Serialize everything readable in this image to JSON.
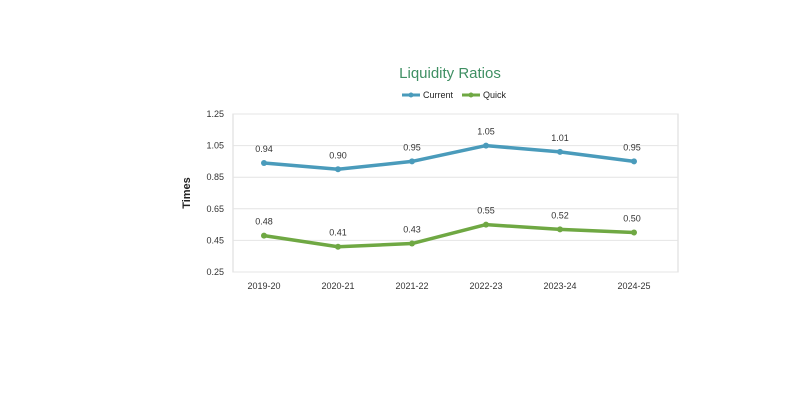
{
  "chart_data": {
    "type": "line",
    "title": "Liquidity Ratios",
    "xlabel": "",
    "ylabel": "Times",
    "categories": [
      "2019-20",
      "2020-21",
      "2021-22",
      "2022-23",
      "2023-24",
      "2024-25"
    ],
    "series": [
      {
        "name": "Current",
        "color": "#4a9bbb",
        "values": [
          0.94,
          0.9,
          0.95,
          1.05,
          1.01,
          0.95
        ],
        "labels": [
          "0.94",
          "0.90",
          "0.95",
          "1.05",
          "1.01",
          "0.95"
        ]
      },
      {
        "name": "Quick",
        "color": "#6fa843",
        "values": [
          0.48,
          0.41,
          0.43,
          0.55,
          0.52,
          0.5
        ],
        "labels": [
          "0.48",
          "0.41",
          "0.43",
          "0.55",
          "0.52",
          "0.50"
        ]
      }
    ],
    "ylim": [
      0.25,
      1.25
    ],
    "yticks": [
      "1.25",
      "1.05",
      "0.85",
      "0.65",
      "0.45",
      "0.25"
    ],
    "legend": "top-center",
    "grid": true
  }
}
